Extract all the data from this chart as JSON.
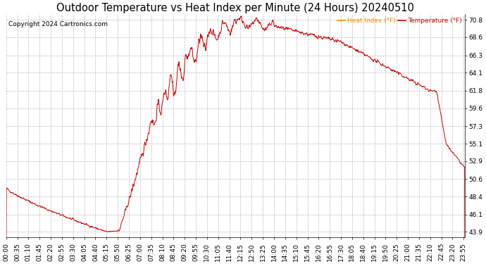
{
  "title": "Outdoor Temperature vs Heat Index per Minute (24 Hours) 20240510",
  "copyright": "Copyright 2024 Cartronics.com",
  "legend_heat": "Heat Index (°F)",
  "legend_temp": "Temperature (°F)",
  "legend_heat_color": "#ff8800",
  "legend_temp_color": "#cc0000",
  "line_color": "#cc0000",
  "background_color": "#ffffff",
  "plot_bg_color": "#ffffff",
  "grid_color": "#bbbbbb",
  "yticks": [
    43.9,
    46.1,
    48.4,
    50.6,
    52.9,
    55.1,
    57.3,
    59.6,
    61.8,
    64.1,
    66.3,
    68.6,
    70.8
  ],
  "ymin": 43.2,
  "ymax": 71.5,
  "title_fontsize": 10.5,
  "tick_fontsize": 6.5,
  "copyright_fontsize": 6.5
}
